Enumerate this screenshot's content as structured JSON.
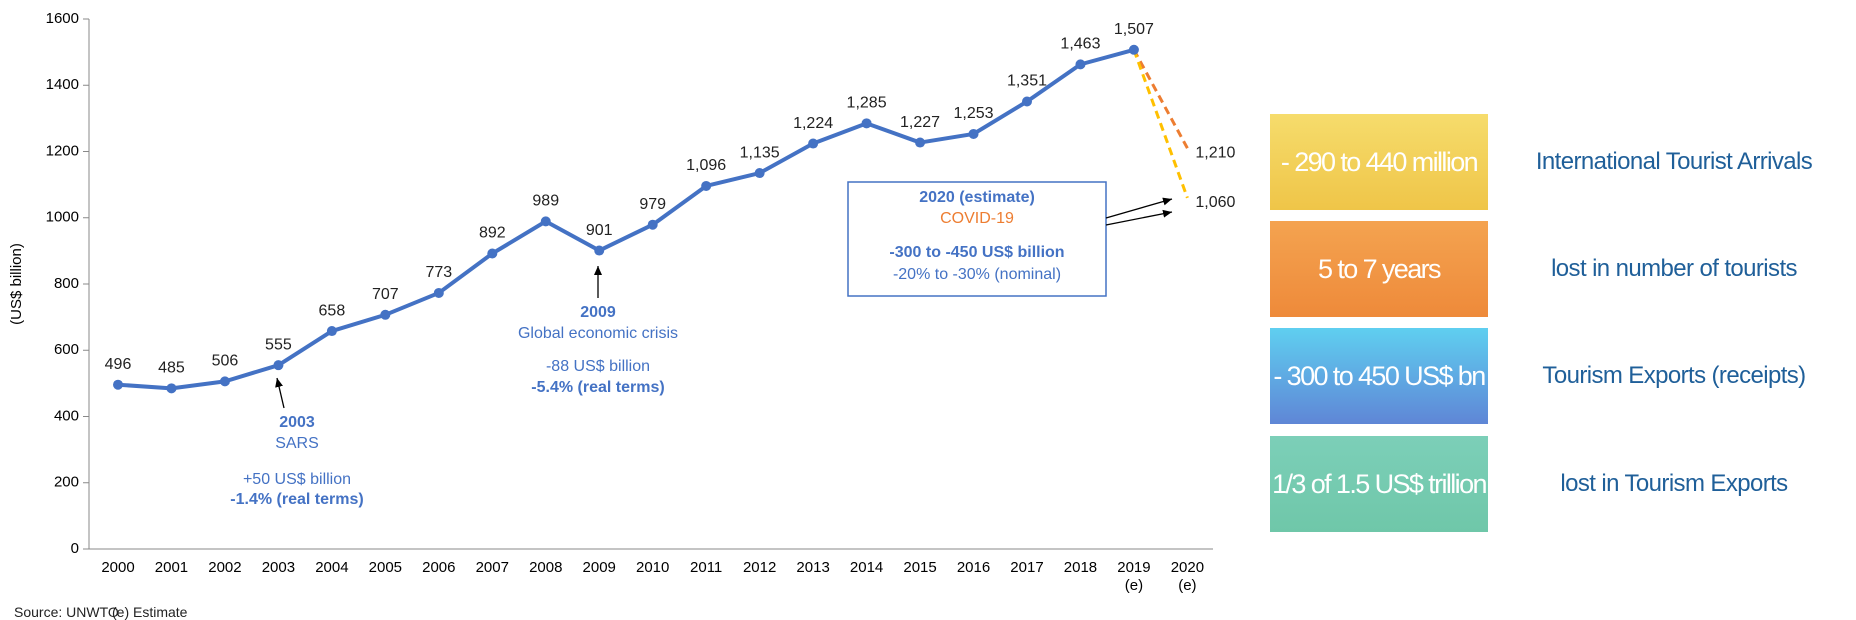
{
  "chart_data": {
    "type": "line",
    "ylabel": "(US$ billion)",
    "categories": [
      "2000",
      "2001",
      "2002",
      "2003",
      "2004",
      "2005",
      "2006",
      "2007",
      "2008",
      "2009",
      "2010",
      "2011",
      "2012",
      "2013",
      "2014",
      "2015",
      "2016",
      "2017",
      "2018",
      "2019\n(e)",
      "2020\n(e)"
    ],
    "ylim": [
      0,
      1600
    ],
    "yticks": [
      0,
      200,
      400,
      600,
      800,
      1000,
      1200,
      1400,
      1600
    ],
    "grid": false,
    "series": [
      {
        "color": "#4472c4",
        "dash": false,
        "markers": true,
        "values": [
          496,
          485,
          506,
          555,
          658,
          707,
          773,
          892,
          989,
          901,
          979,
          1096,
          1135,
          1224,
          1285,
          1227,
          1253,
          1351,
          1463,
          1507,
          null
        ],
        "value_labels": [
          "496",
          "485",
          "506",
          "555",
          "658",
          "707",
          "773",
          "892",
          "989",
          "901",
          "979",
          "1,096",
          "1,135",
          "1,224",
          "1,285",
          "1,227",
          "1,253",
          "1,351",
          "1,463",
          "1,507",
          null
        ]
      },
      {
        "color": "#ed7d31",
        "dash": true,
        "markers": false,
        "values": [
          null,
          null,
          null,
          null,
          null,
          null,
          null,
          null,
          null,
          null,
          null,
          null,
          null,
          null,
          null,
          null,
          null,
          null,
          null,
          1507,
          1210
        ],
        "value_labels": [
          null,
          null,
          null,
          null,
          null,
          null,
          null,
          null,
          null,
          null,
          null,
          null,
          null,
          null,
          null,
          null,
          null,
          null,
          null,
          null,
          "1,210"
        ]
      },
      {
        "color": "#ffc000",
        "dash": true,
        "markers": false,
        "values": [
          null,
          null,
          null,
          null,
          null,
          null,
          null,
          null,
          null,
          null,
          null,
          null,
          null,
          null,
          null,
          null,
          null,
          null,
          null,
          1507,
          1060
        ],
        "value_labels": [
          null,
          null,
          null,
          null,
          null,
          null,
          null,
          null,
          null,
          null,
          null,
          null,
          null,
          null,
          null,
          null,
          null,
          null,
          null,
          null,
          "1,060"
        ]
      }
    ],
    "annotations": [
      {
        "lines": [
          "2003",
          "SARS",
          "+50 US$ billion",
          "-1.4% (real terms)"
        ]
      },
      {
        "lines": [
          "2009",
          "Global economic crisis",
          "-88 US$ billion",
          "-5.4% (real terms)"
        ]
      },
      {
        "lines": [
          "2020 (estimate)",
          "COVID-19",
          "-300 to -450 US$ billion",
          "-20% to -30% (nominal)"
        ]
      }
    ]
  },
  "side_panel": [
    {
      "box": "- 290 to 440 million",
      "text": "International Tourist Arrivals",
      "fill": [
        "#f6dc6c",
        "#efc548"
      ]
    },
    {
      "box": "5 to 7 years",
      "text": "lost in number of tourists",
      "fill": [
        "#f4a350",
        "#ee8a3a"
      ]
    },
    {
      "box": "- 300 to 450 US$ bn",
      "text": "Tourism Exports (receipts)",
      "fill": [
        "#5fcff0",
        "#5f86d6"
      ]
    },
    {
      "box": "1/3 of 1.5 US$ trillion",
      "text": "lost in Tourism Exports",
      "fill": [
        "#7ccfb8",
        "#6fc7a9"
      ]
    }
  ],
  "source": "Source: UNWTO",
  "footnote": "(e) Estimate"
}
